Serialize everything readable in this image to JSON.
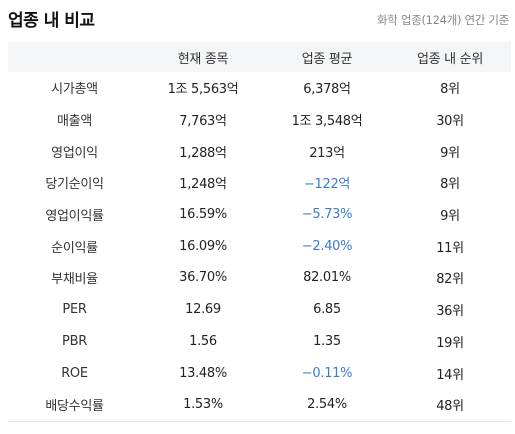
{
  "header": {
    "title": "업종 내 비교",
    "subtitle": "화학 업종(124개) 연간 기준"
  },
  "table": {
    "columns": [
      "",
      "현재 종목",
      "업종 평균",
      "업종 내 순위"
    ],
    "rows": [
      {
        "label": "시가총액",
        "current": "1조 5,563억",
        "average": "6,378억",
        "rank": "8위",
        "avg_negative": false
      },
      {
        "label": "매출액",
        "current": "7,763억",
        "average": "1조 3,548억",
        "rank": "30위",
        "avg_negative": false
      },
      {
        "label": "영업이익",
        "current": "1,288억",
        "average": "213억",
        "rank": "9위",
        "avg_negative": false
      },
      {
        "label": "당기순이익",
        "current": "1,248억",
        "average": "−122억",
        "rank": "8위",
        "avg_negative": true
      },
      {
        "label": "영업이익률",
        "current": "16.59%",
        "average": "−5.73%",
        "rank": "9위",
        "avg_negative": true
      },
      {
        "label": "순이익률",
        "current": "16.09%",
        "average": "−2.40%",
        "rank": "11위",
        "avg_negative": true
      },
      {
        "label": "부채비율",
        "current": "36.70%",
        "average": "82.01%",
        "rank": "82위",
        "avg_negative": false
      },
      {
        "label": "PER",
        "current": "12.69",
        "average": "6.85",
        "rank": "36위",
        "avg_negative": false
      },
      {
        "label": "PBR",
        "current": "1.56",
        "average": "1.35",
        "rank": "19위",
        "avg_negative": false
      },
      {
        "label": "ROE",
        "current": "13.48%",
        "average": "−0.11%",
        "rank": "14위",
        "avg_negative": true
      },
      {
        "label": "배당수익률",
        "current": "1.53%",
        "average": "2.54%",
        "rank": "48위",
        "avg_negative": false
      }
    ]
  },
  "colors": {
    "negative": "#3a7bd5",
    "header_bg": "#f4f5f7",
    "subtitle": "#888888"
  }
}
